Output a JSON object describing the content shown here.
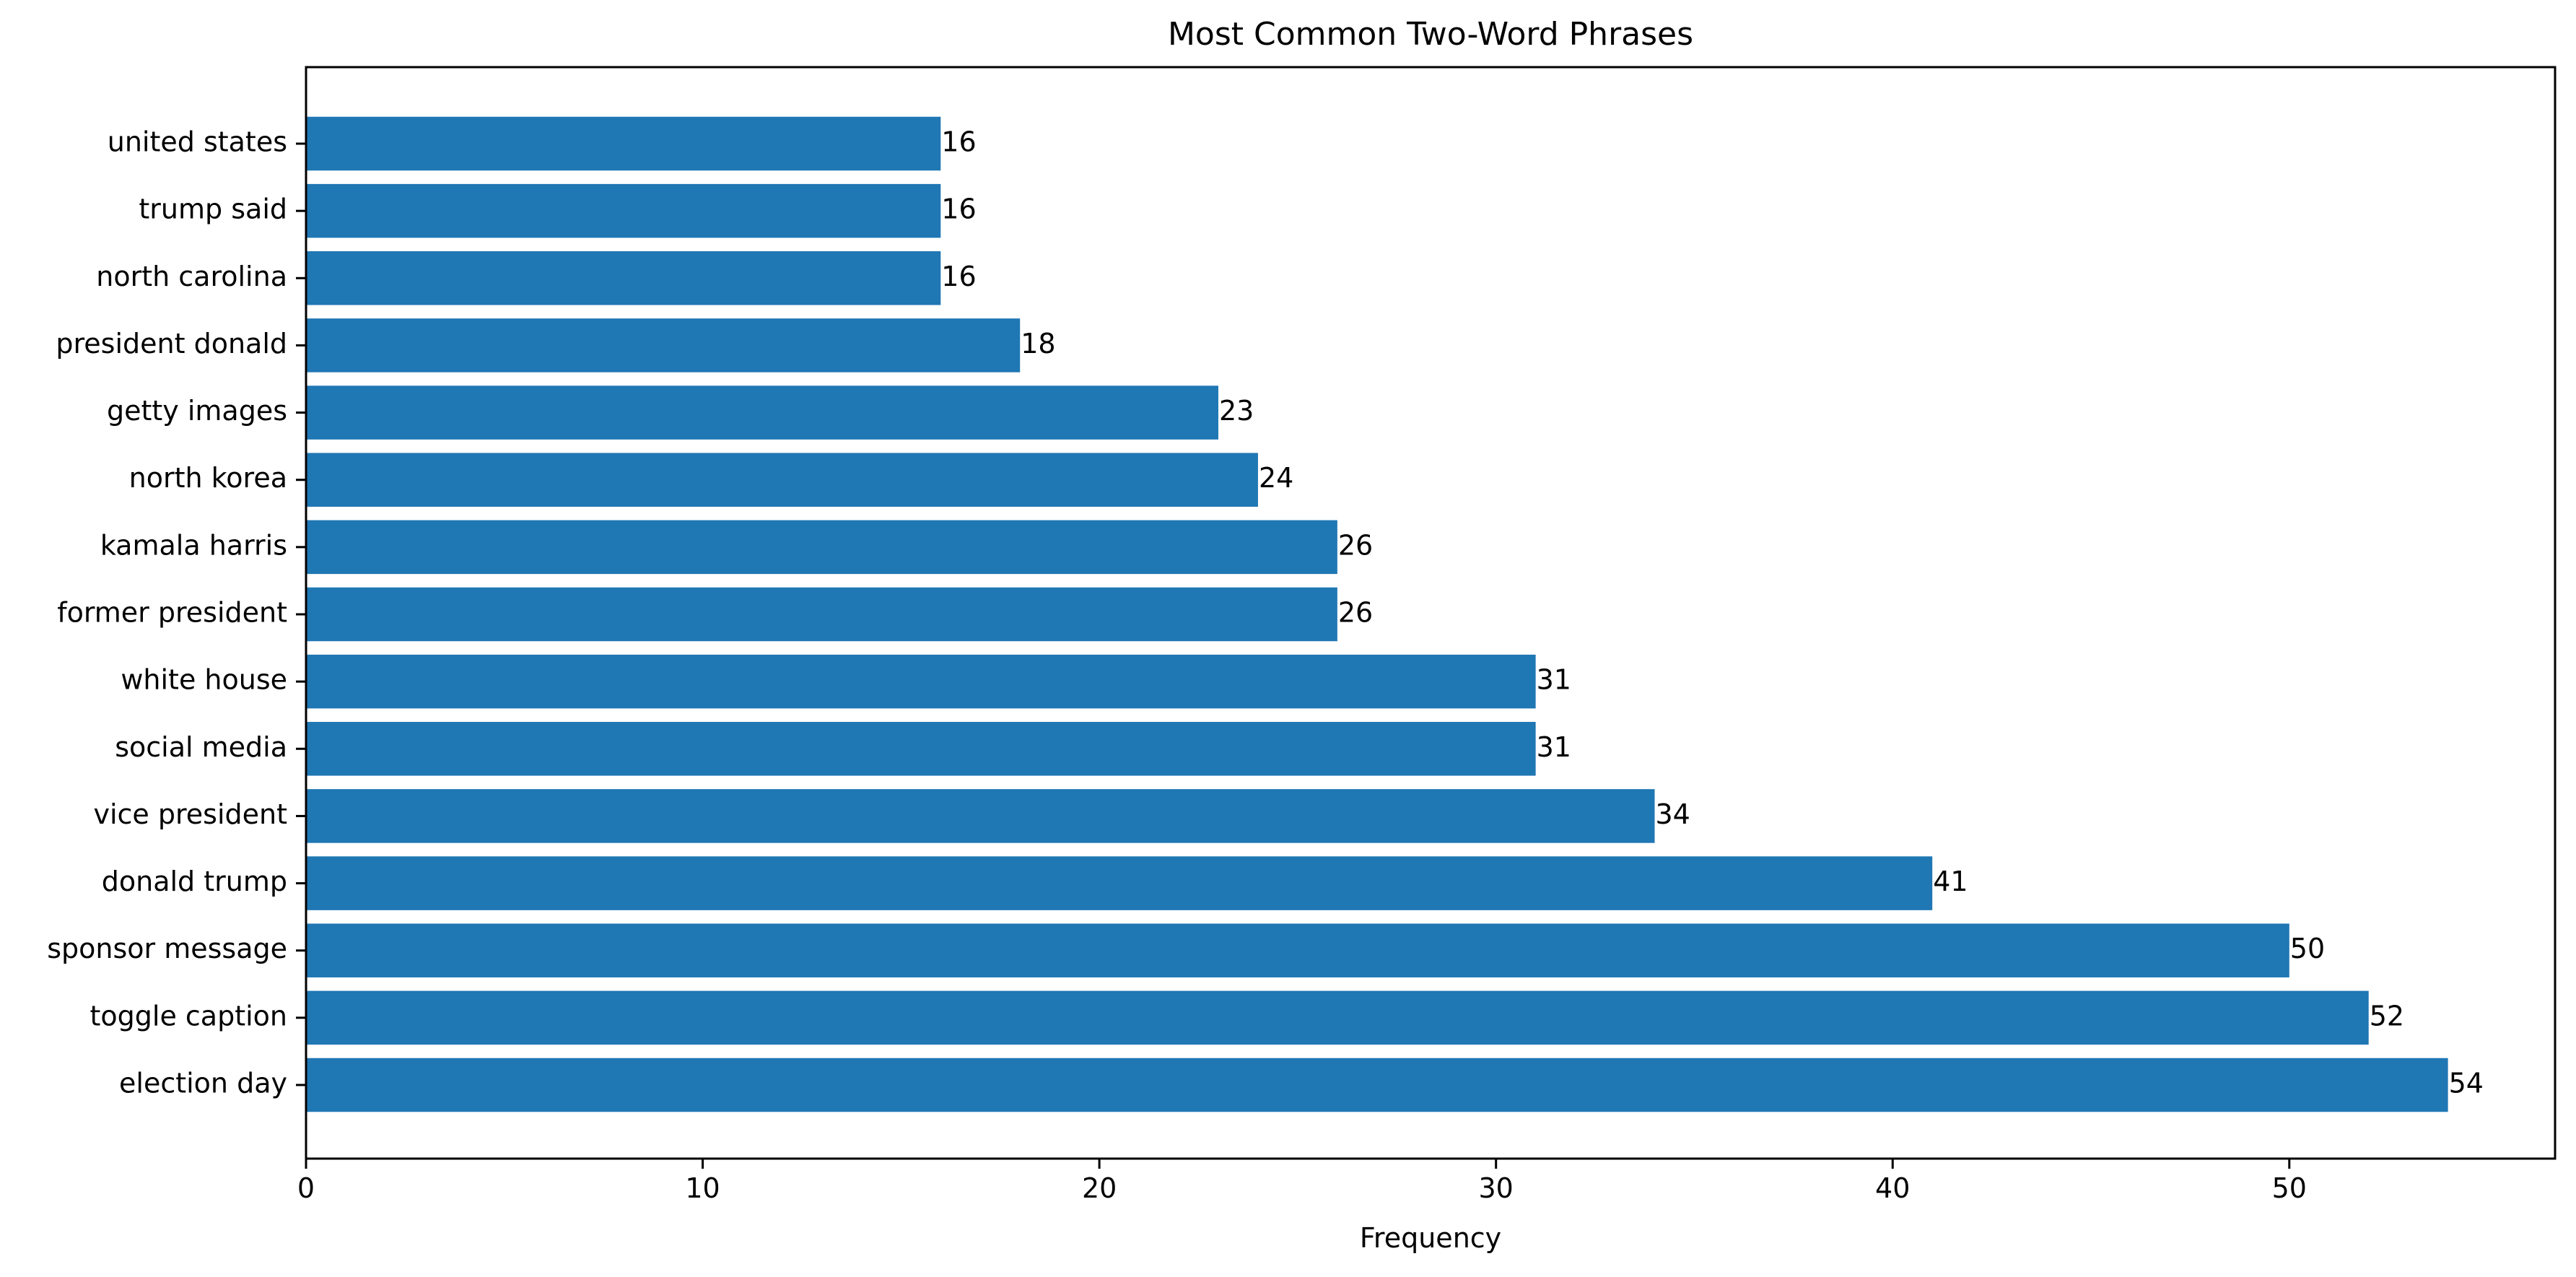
{
  "chart_data": {
    "type": "bar",
    "orientation": "horizontal",
    "title": "Most Common Two-Word Phrases",
    "xlabel": "Frequency",
    "ylabel": "",
    "xlim": [
      0,
      56.7
    ],
    "x_ticks": [
      0,
      10,
      20,
      30,
      40,
      50
    ],
    "grid": false,
    "bar_color": "#1f77b4",
    "categories": [
      "election day",
      "toggle caption",
      "sponsor message",
      "donald trump",
      "vice president",
      "social media",
      "white house",
      "former president",
      "kamala harris",
      "north korea",
      "getty images",
      "president donald",
      "north carolina",
      "trump said",
      "united states"
    ],
    "values": [
      54,
      52,
      50,
      41,
      34,
      31,
      31,
      26,
      26,
      24,
      23,
      18,
      16,
      16,
      16
    ],
    "data_labels": true
  }
}
